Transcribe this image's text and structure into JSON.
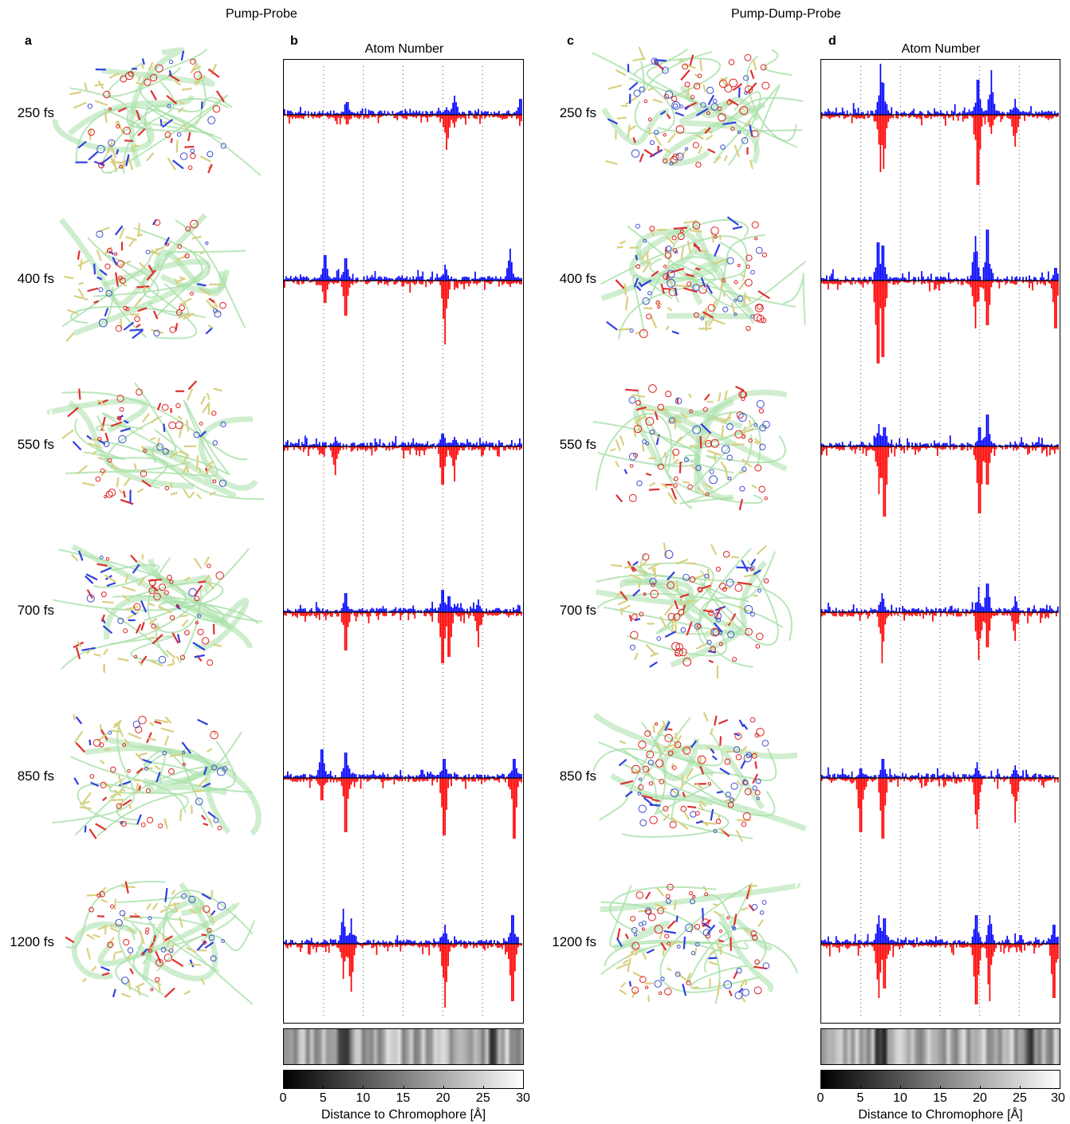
{
  "sections": {
    "left_title": "Pump-Probe",
    "right_title": "Pump-Dump-Probe"
  },
  "panel_letters": [
    "a",
    "b",
    "c",
    "d"
  ],
  "time_labels": [
    "250 fs",
    "400 fs",
    "550 fs",
    "700 fs",
    "850 fs",
    "1200 fs"
  ],
  "colorbar": {
    "ticks": [
      "0",
      "5",
      "10",
      "15",
      "20",
      "25",
      "30"
    ],
    "label": "Distance to Chromophore [Å]"
  },
  "colors": {
    "positive": "#0000ff",
    "negative": "#ff0000",
    "ribbon": "#a8e0a8",
    "stick": "#d8d080"
  },
  "chart_data": [
    {
      "type": "bar",
      "panel": "b",
      "title": "Atom Number",
      "xlabel": "Distance to Chromophore [Å]",
      "xlim": [
        0,
        30
      ],
      "x_gridlines": [
        5,
        10,
        15,
        20,
        25
      ],
      "series": [
        {
          "name": "250 fs",
          "peaks": [
            {
              "x": 8,
              "pos": 0.2,
              "neg": 0.15
            },
            {
              "x": 20.5,
              "pos": 0.12,
              "neg": 0.55
            },
            {
              "x": 21.5,
              "pos": 0.3,
              "neg": 0.2
            },
            {
              "x": 29.8,
              "pos": 0.25,
              "neg": 0.1
            }
          ]
        },
        {
          "name": "400 fs",
          "peaks": [
            {
              "x": 5.2,
              "pos": 0.4,
              "neg": 0.35
            },
            {
              "x": 7.8,
              "pos": 0.35,
              "neg": 0.55
            },
            {
              "x": 20.3,
              "pos": 0.25,
              "neg": 1.0
            },
            {
              "x": 28.5,
              "pos": 0.5,
              "neg": 0.1
            }
          ]
        },
        {
          "name": "550 fs",
          "peaks": [
            {
              "x": 6.5,
              "pos": 0.15,
              "neg": 0.45
            },
            {
              "x": 20.0,
              "pos": 0.2,
              "neg": 0.6
            },
            {
              "x": 21.5,
              "pos": 0.15,
              "neg": 0.55
            }
          ]
        },
        {
          "name": "700 fs",
          "peaks": [
            {
              "x": 7.8,
              "pos": 0.3,
              "neg": 0.6
            },
            {
              "x": 20.0,
              "pos": 0.35,
              "neg": 0.8
            },
            {
              "x": 20.8,
              "pos": 0.25,
              "neg": 0.7
            },
            {
              "x": 24.5,
              "pos": 0.2,
              "neg": 0.55
            }
          ]
        },
        {
          "name": "850 fs",
          "peaks": [
            {
              "x": 4.8,
              "pos": 0.45,
              "neg": 0.35
            },
            {
              "x": 7.8,
              "pos": 0.4,
              "neg": 0.85
            },
            {
              "x": 20.2,
              "pos": 0.3,
              "neg": 0.9
            },
            {
              "x": 29.0,
              "pos": 0.3,
              "neg": 0.95
            }
          ]
        },
        {
          "name": "1200 fs",
          "peaks": [
            {
              "x": 7.5,
              "pos": 0.55,
              "neg": 0.55
            },
            {
              "x": 8.5,
              "pos": 0.4,
              "neg": 0.75
            },
            {
              "x": 20.3,
              "pos": 0.3,
              "neg": 1.0
            },
            {
              "x": 28.8,
              "pos": 0.45,
              "neg": 0.9
            }
          ]
        }
      ]
    },
    {
      "type": "bar",
      "panel": "d",
      "title": "Atom Number",
      "xlabel": "Distance to Chromophore [Å]",
      "xlim": [
        0,
        30
      ],
      "x_gridlines": [
        5,
        10,
        15,
        20,
        25
      ],
      "series": [
        {
          "name": "250 fs",
          "peaks": [
            {
              "x": 7.5,
              "pos": 0.8,
              "neg": 0.9
            },
            {
              "x": 7.9,
              "pos": 0.5,
              "neg": 0.85
            },
            {
              "x": 19.8,
              "pos": 0.55,
              "neg": 1.1
            },
            {
              "x": 21.5,
              "pos": 0.7,
              "neg": 0.3
            },
            {
              "x": 24.5,
              "pos": 0.25,
              "neg": 0.5
            }
          ]
        },
        {
          "name": "400 fs",
          "peaks": [
            {
              "x": 7.2,
              "pos": 0.6,
              "neg": 1.3
            },
            {
              "x": 7.8,
              "pos": 0.55,
              "neg": 1.2
            },
            {
              "x": 19.5,
              "pos": 0.7,
              "neg": 0.75
            },
            {
              "x": 21.0,
              "pos": 0.8,
              "neg": 0.7
            },
            {
              "x": 29.6,
              "pos": 0.2,
              "neg": 0.75
            }
          ]
        },
        {
          "name": "550 fs",
          "peaks": [
            {
              "x": 7.3,
              "pos": 0.35,
              "neg": 0.75
            },
            {
              "x": 8.0,
              "pos": 0.3,
              "neg": 1.1
            },
            {
              "x": 20.0,
              "pos": 0.3,
              "neg": 1.05
            },
            {
              "x": 21.0,
              "pos": 0.5,
              "neg": 0.6
            }
          ]
        },
        {
          "name": "700 fs",
          "peaks": [
            {
              "x": 7.7,
              "pos": 0.3,
              "neg": 0.8
            },
            {
              "x": 19.9,
              "pos": 0.4,
              "neg": 0.75
            },
            {
              "x": 21.0,
              "pos": 0.45,
              "neg": 0.55
            },
            {
              "x": 24.5,
              "pos": 0.25,
              "neg": 0.45
            }
          ]
        },
        {
          "name": "850 fs",
          "peaks": [
            {
              "x": 5.0,
              "pos": 0.15,
              "neg": 0.85
            },
            {
              "x": 7.8,
              "pos": 0.3,
              "neg": 0.95
            },
            {
              "x": 19.7,
              "pos": 0.25,
              "neg": 0.8
            },
            {
              "x": 24.5,
              "pos": 0.2,
              "neg": 0.7
            }
          ]
        },
        {
          "name": "1200 fs",
          "peaks": [
            {
              "x": 7.3,
              "pos": 0.45,
              "neg": 0.85
            },
            {
              "x": 8.0,
              "pos": 0.4,
              "neg": 0.7
            },
            {
              "x": 19.6,
              "pos": 0.45,
              "neg": 0.95
            },
            {
              "x": 21.3,
              "pos": 0.45,
              "neg": 0.9
            },
            {
              "x": 29.4,
              "pos": 0.3,
              "neg": 0.85
            }
          ]
        }
      ]
    }
  ]
}
